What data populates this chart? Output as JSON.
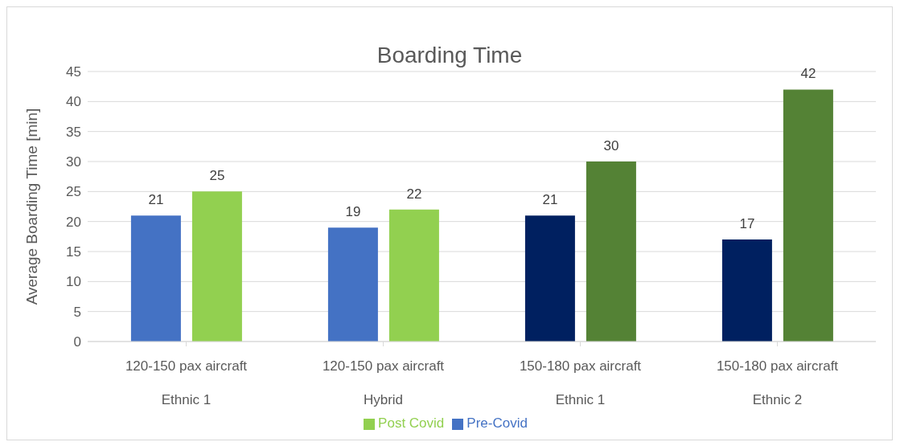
{
  "chart_data": {
    "type": "bar",
    "title": "Boarding Time",
    "ylabel": "Average Boarding Time [min]",
    "categories": [
      "120-150 pax aircraft\nEthnic 1",
      "120-150 pax aircraft\nHybrid",
      "150-180 pax aircraft\nEthnic 1",
      "150-180 pax aircraft\nEthnic 2"
    ],
    "series": [
      {
        "name": "Pre-Covid",
        "color": "#4472c4",
        "colors": [
          "#4472c4",
          "#4472c4",
          "#002060",
          "#002060"
        ],
        "values": [
          21,
          19,
          21,
          17
        ]
      },
      {
        "name": "Post Covid",
        "color": "#92d050",
        "colors": [
          "#92d050",
          "#92d050",
          "#548235",
          "#548235"
        ],
        "values": [
          25,
          22,
          30,
          42
        ]
      }
    ],
    "ylim": [
      0,
      45
    ],
    "yticks": [
      0,
      5,
      10,
      15,
      20,
      25,
      30,
      35,
      40,
      45
    ],
    "grid": "y",
    "legend": "bottom",
    "data_labels": true
  }
}
